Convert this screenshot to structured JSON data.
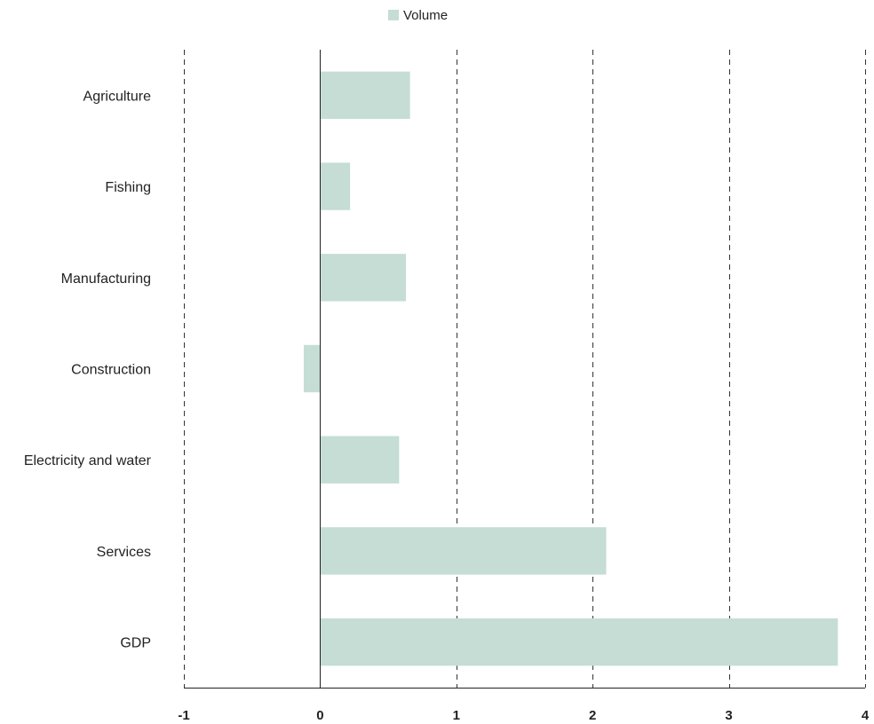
{
  "chart_data": {
    "type": "bar",
    "orientation": "horizontal",
    "title": "",
    "xlabel": "",
    "ylabel": "",
    "categories": [
      "Agriculture",
      "Fishing ",
      "Manufacturing",
      "Construction",
      "Electricity and water",
      "Services",
      "GDP"
    ],
    "series": [
      {
        "name": "Volume",
        "values": [
          0.66,
          0.22,
          0.63,
          -0.12,
          0.58,
          2.1,
          3.8
        ],
        "color": "#c5ddd5"
      }
    ],
    "xlim": [
      -1,
      4
    ],
    "xticks": [
      "-1",
      "0",
      "1",
      "2",
      "3",
      "4"
    ],
    "grid": "vertical-dashed",
    "legend_position": "top-center"
  }
}
